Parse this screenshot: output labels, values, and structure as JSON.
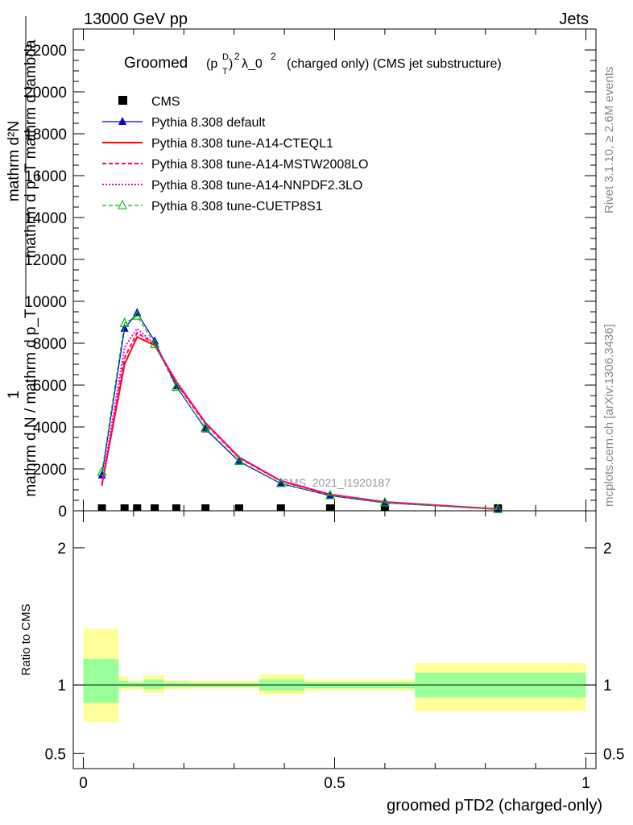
{
  "header": {
    "left_label": "13000 GeV pp",
    "right_label": "Jets"
  },
  "side_labels": {
    "rivet": "Rivet 3.1.10, ≥ 2.6M events",
    "mcplots": "mcplots.cern.ch [arXiv:1306.3436]"
  },
  "watermark": "CMS_2021_I1920187",
  "chart_data": [
    {
      "type": "line",
      "title_parts": {
        "main": "Groomed",
        "p": "(p",
        "sup_d": "D",
        "sub_t": "T",
        "close": ")",
        "sup_2a": "2",
        "lambda": "λ_0",
        "sup_2b": "2",
        "rest": "(charged only) (CMS jet substructure)"
      },
      "ylabel_numerator": "mathrm d²N",
      "ylabel_denominator": "mathrm d p_T mathrm d lambda",
      "ylabel_prefix": "1",
      "ylabel_frac": "mathrm d N / mathrm d p_T",
      "xlim": [
        -0.02,
        1.02
      ],
      "ylim": [
        0,
        23000
      ],
      "yticks": [
        0,
        2000,
        4000,
        6000,
        8000,
        10000,
        12000,
        14000,
        16000,
        18000,
        20000,
        22000
      ],
      "ytick_labels": [
        "0",
        "2000",
        "4000",
        "6000",
        "8000",
        "10000",
        "12000",
        "14000",
        "16000",
        "18000",
        "20000",
        "22000"
      ],
      "x": [
        0.037,
        0.082,
        0.107,
        0.142,
        0.185,
        0.243,
        0.31,
        0.393,
        0.491,
        0.6,
        0.825
      ],
      "series": [
        {
          "name": "CMS",
          "color": "#000000",
          "values": [
            0,
            0,
            0,
            0,
            0,
            0,
            0,
            0,
            0,
            0,
            0
          ]
        },
        {
          "name": "Pythia 8.308 default",
          "color": "#0000cc",
          "values": [
            1700,
            8700,
            9450,
            8100,
            5950,
            3900,
            2350,
            1300,
            720,
            380,
            70
          ]
        },
        {
          "name": "Pythia 8.308 tune-A14-CTEQL1",
          "color": "#ff0000",
          "values": [
            1250,
            7000,
            8300,
            7900,
            6150,
            4200,
            2550,
            1430,
            780,
            420,
            80
          ]
        },
        {
          "name": "Pythia 8.308 tune-A14-MSTW2008LO",
          "color": "#ff0077",
          "values": [
            1200,
            7300,
            8500,
            7950,
            6100,
            4150,
            2520,
            1420,
            770,
            415,
            80
          ]
        },
        {
          "name": "Pythia 8.308 tune-A14-NNPDF2.3LO",
          "color": "#ff00cc",
          "values": [
            1300,
            7800,
            8700,
            7950,
            6200,
            4200,
            2560,
            1440,
            785,
            425,
            85
          ]
        },
        {
          "name": "Pythia 8.308 tune-CUETP8S1",
          "color": "#00bb00",
          "values": [
            1850,
            8950,
            9300,
            7950,
            5900,
            3950,
            2380,
            1310,
            730,
            385,
            72
          ]
        }
      ]
    },
    {
      "type": "area",
      "ylabel": "Ratio to CMS",
      "xlabel": "groomed pTD2 (charged-only)",
      "xlim": [
        -0.02,
        1.02
      ],
      "ylim": [
        0.39,
        2.27
      ],
      "yticks": [
        0.5,
        1,
        2
      ],
      "ytick_labels": [
        "0.5",
        "1",
        "2"
      ],
      "xticks": [
        0,
        0.5,
        1
      ],
      "xtick_labels": [
        "0",
        "0.5",
        "1"
      ],
      "band_colors": {
        "stat": "#99ff99",
        "total": "#ffff99"
      },
      "bins": [
        {
          "lo": 0.0,
          "hi": 0.07,
          "stat": [
            0.87,
            1.19
          ],
          "total": [
            0.73,
            1.41
          ]
        },
        {
          "lo": 0.07,
          "hi": 0.09,
          "stat": [
            0.98,
            1.03
          ],
          "total": [
            0.96,
            1.06
          ]
        },
        {
          "lo": 0.09,
          "hi": 0.12,
          "stat": [
            0.985,
            1.02
          ],
          "total": [
            0.97,
            1.03
          ]
        },
        {
          "lo": 0.12,
          "hi": 0.16,
          "stat": [
            0.97,
            1.04
          ],
          "total": [
            0.94,
            1.07
          ]
        },
        {
          "lo": 0.16,
          "hi": 0.21,
          "stat": [
            0.985,
            1.02
          ],
          "total": [
            0.97,
            1.035
          ]
        },
        {
          "lo": 0.21,
          "hi": 0.35,
          "stat": [
            0.985,
            1.015
          ],
          "total": [
            0.975,
            1.03
          ]
        },
        {
          "lo": 0.35,
          "hi": 0.44,
          "stat": [
            0.96,
            1.04
          ],
          "total": [
            0.93,
            1.08
          ]
        },
        {
          "lo": 0.44,
          "hi": 0.66,
          "stat": [
            0.975,
            1.02
          ],
          "total": [
            0.96,
            1.04
          ]
        },
        {
          "lo": 0.66,
          "hi": 1.0,
          "stat": [
            0.91,
            1.09
          ],
          "total": [
            0.81,
            1.16
          ]
        }
      ]
    }
  ]
}
